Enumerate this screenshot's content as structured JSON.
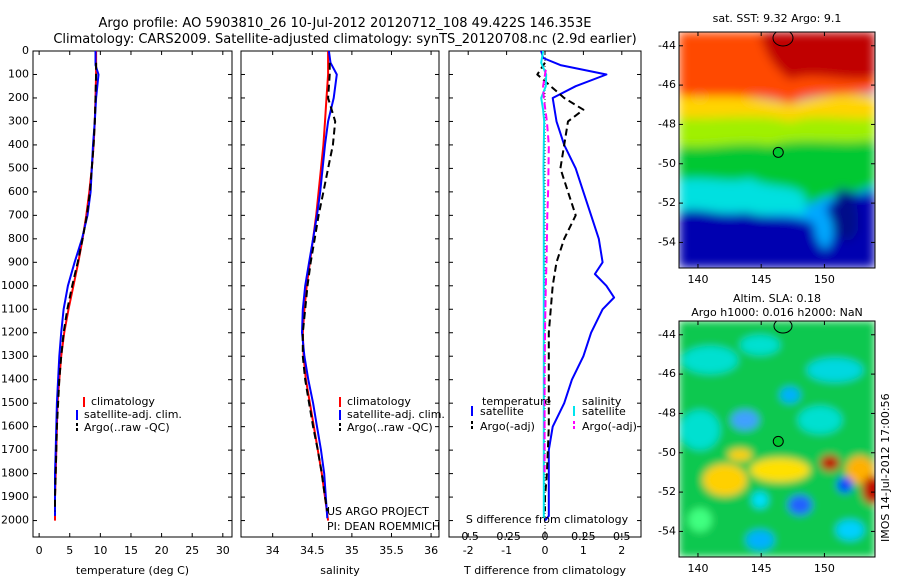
{
  "header": {
    "title_line1": "Argo profile: AO 5903810_26 10-Jul-2012 20120712_108 49.422S 146.353E",
    "title_line2": "Climatology: CARS2009. Satellite-adjusted climatology: synTS_20120708.nc (2.9d earlier)"
  },
  "credits": {
    "project": "US ARGO PROJECT",
    "pi": "PI: DEAN ROEMMICH"
  },
  "side_stamp": "IMOS 14-Jul-2012 17:00:56",
  "colors": {
    "red": "#ff0000",
    "blue": "#0000ff",
    "black": "#000000",
    "cyan": "#00e5ee",
    "magenta": "#ff00ff"
  },
  "depth_ticks": [
    0,
    100,
    200,
    300,
    400,
    500,
    600,
    700,
    800,
    900,
    1000,
    1100,
    1200,
    1300,
    1400,
    1500,
    1600,
    1700,
    1800,
    1900,
    2000
  ],
  "depth_range": [
    0,
    2070
  ],
  "chart_data": [
    {
      "type": "line",
      "xlabel": "temperature (deg C)",
      "xlim": [
        -1,
        31.5
      ],
      "xticks": [
        0,
        5,
        10,
        15,
        20,
        25,
        30
      ],
      "legend": {
        "placement": "lower-middle",
        "entries": [
          "climatology",
          "satellite-adj. clim.",
          "Argo(..raw -QC)"
        ]
      },
      "series": [
        {
          "name": "climatology",
          "color": "#ff0000",
          "dash": "none",
          "x": [
            9.3,
            9.3,
            9.2,
            9.1,
            8.9,
            8.6,
            8.2,
            7.7,
            7.1,
            6.4,
            5.6,
            4.8,
            4.1,
            3.6,
            3.3,
            3.0,
            2.9,
            2.8,
            2.7,
            2.6,
            2.6
          ],
          "y": [
            0,
            100,
            200,
            300,
            400,
            500,
            600,
            700,
            800,
            900,
            1000,
            1100,
            1200,
            1300,
            1400,
            1500,
            1600,
            1700,
            1800,
            1900,
            2000
          ]
        },
        {
          "name": "satellite-adj. clim.",
          "color": "#0000ff",
          "dash": "none",
          "x": [
            9.2,
            9.2,
            9.7,
            9.3,
            9.1,
            8.8,
            8.6,
            8.4,
            7.9,
            7.0,
            5.8,
            4.7,
            4.0,
            3.6,
            3.3,
            3.1,
            2.9,
            2.8,
            2.7,
            2.6,
            2.6
          ],
          "y": [
            0,
            60,
            100,
            200,
            300,
            400,
            500,
            600,
            700,
            800,
            900,
            1000,
            1100,
            1200,
            1300,
            1400,
            1500,
            1600,
            1700,
            1800,
            1980
          ]
        },
        {
          "name": "Argo(..raw -QC)",
          "color": "#000000",
          "dash": "7 4",
          "x": [
            9.3,
            9.3,
            9.2,
            9.1,
            8.9,
            8.6,
            8.3,
            7.8,
            7.1,
            6.3,
            5.4,
            4.6,
            4.0,
            3.6,
            3.3,
            3.1,
            2.9,
            2.8,
            2.7,
            2.6,
            2.6
          ],
          "y": [
            50,
            100,
            200,
            300,
            400,
            500,
            600,
            700,
            800,
            900,
            1000,
            1100,
            1200,
            1300,
            1400,
            1500,
            1600,
            1700,
            1800,
            1900,
            1960
          ]
        }
      ]
    },
    {
      "type": "line",
      "xlabel": "salinity",
      "xlim": [
        33.6,
        36.1
      ],
      "xticks": [
        34,
        34.5,
        35,
        35.5,
        36
      ],
      "tick_labels": [
        "34",
        "34.5",
        "35",
        "35.5",
        "36"
      ],
      "legend": {
        "placement": "lower-middle",
        "entries": [
          "climatology",
          "satellite-adj. clim.",
          "Argo(..raw -QC)"
        ]
      },
      "series": [
        {
          "name": "climatology",
          "color": "#ff0000",
          "dash": "none",
          "x": [
            34.7,
            34.7,
            34.68,
            34.66,
            34.64,
            34.61,
            34.58,
            34.55,
            34.51,
            34.47,
            34.43,
            34.4,
            34.38,
            34.39,
            34.42,
            34.47,
            34.52,
            34.57,
            34.62,
            34.66,
            34.7
          ],
          "y": [
            0,
            100,
            200,
            300,
            400,
            500,
            600,
            700,
            800,
            900,
            1000,
            1100,
            1200,
            1300,
            1400,
            1500,
            1600,
            1700,
            1800,
            1900,
            2000
          ]
        },
        {
          "name": "satellite-adj. clim.",
          "color": "#0000ff",
          "dash": "none",
          "x": [
            34.71,
            34.73,
            34.81,
            34.77,
            34.7,
            34.66,
            34.63,
            34.6,
            34.56,
            34.51,
            34.46,
            34.41,
            34.38,
            34.37,
            34.4,
            34.45,
            34.51,
            34.56,
            34.61,
            34.65,
            34.69
          ],
          "y": [
            0,
            50,
            100,
            200,
            300,
            400,
            500,
            600,
            700,
            800,
            900,
            1000,
            1100,
            1200,
            1300,
            1400,
            1500,
            1600,
            1700,
            1800,
            1990
          ]
        },
        {
          "name": "Argo(..raw -QC)",
          "color": "#000000",
          "dash": "7 4",
          "x": [
            34.72,
            34.72,
            34.7,
            34.79,
            34.76,
            34.7,
            34.64,
            34.58,
            34.53,
            34.48,
            34.44,
            34.41,
            34.38,
            34.38,
            34.41,
            34.46,
            34.51,
            34.57,
            34.62,
            34.66,
            34.69
          ],
          "y": [
            50,
            100,
            200,
            300,
            400,
            500,
            600,
            700,
            800,
            900,
            1000,
            1100,
            1200,
            1300,
            1400,
            1500,
            1600,
            1700,
            1800,
            1900,
            1960
          ]
        }
      ]
    },
    {
      "type": "line",
      "xlabel": "T difference from climatology",
      "xlabel_top": "S difference from climatology",
      "xlim": [
        -2.5,
        2.5
      ],
      "xticks": [
        -2,
        -1,
        0,
        1,
        2
      ],
      "tick_labels": [
        "-2",
        "-1",
        "0",
        "1",
        "2"
      ],
      "sticks": [
        -0.5,
        -0.25,
        0,
        0.25,
        0.5
      ],
      "stick_labels": [
        "-0.5",
        "-0.25",
        "0",
        "0.25",
        "0.5"
      ],
      "legend": {
        "placement": "lower-middle",
        "headers": [
          "temperature",
          "salinity"
        ],
        "entries": [
          "satellite",
          "Argo(-adj)",
          "satellite",
          "Argo(-adj)"
        ]
      },
      "series": [
        {
          "name": "temperature satellite",
          "color": "#0000ff",
          "dash": "none",
          "x": [
            -0.1,
            -0.05,
            0.4,
            1.6,
            0.8,
            0.2,
            0.3,
            0.5,
            0.8,
            1.0,
            1.2,
            1.4,
            1.5,
            1.3,
            1.6,
            1.8,
            1.5,
            1.2,
            1.0,
            0.7,
            0.5,
            0.2,
            0.1,
            0.1,
            0.1,
            0.1,
            0.0
          ],
          "y": [
            0,
            30,
            60,
            100,
            150,
            200,
            300,
            400,
            500,
            600,
            700,
            800,
            900,
            950,
            1000,
            1050,
            1100,
            1200,
            1300,
            1400,
            1500,
            1600,
            1700,
            1800,
            1900,
            1980,
            2000
          ]
        },
        {
          "name": "temperature Argo(-adj)",
          "color": "#000000",
          "dash": "7 4",
          "x": [
            0.0,
            -0.2,
            0.5,
            1.0,
            0.6,
            0.5,
            0.4,
            0.6,
            0.8,
            0.5,
            0.3,
            0.2,
            0.1,
            0.1,
            0.1,
            0.05,
            0.0,
            0.0
          ],
          "y": [
            50,
            100,
            200,
            250,
            300,
            400,
            500,
            600,
            700,
            800,
            900,
            1000,
            1200,
            1400,
            1600,
            1800,
            1900,
            1960
          ]
        },
        {
          "name": "salinity satellite",
          "color": "#00e5ee",
          "dash": "none",
          "x": [
            -0.05,
            -0.1,
            0.03,
            0.02,
            -0.1,
            -0.05,
            -0.02,
            -0.03,
            -0.04,
            -0.03,
            -0.03,
            -0.03,
            -0.03,
            -0.03,
            -0.03,
            -0.03,
            -0.03,
            -0.03,
            -0.03,
            -0.03,
            -0.03,
            -0.03,
            -0.03
          ],
          "y": [
            0,
            50,
            100,
            150,
            200,
            250,
            300,
            400,
            500,
            600,
            700,
            800,
            900,
            1000,
            1100,
            1200,
            1300,
            1400,
            1500,
            1600,
            1700,
            1800,
            1990
          ]
        },
        {
          "name": "salinity Argo(-adj)",
          "color": "#ff00ff",
          "dash": "7 4",
          "x": [
            0.02,
            -0.05,
            -0.03,
            0.05,
            0.1,
            0.09,
            0.08,
            0.06,
            0.05,
            0.04,
            0.02,
            0.0,
            -0.01,
            -0.01,
            -0.01
          ],
          "y": [
            80,
            150,
            200,
            300,
            400,
            500,
            600,
            700,
            800,
            900,
            1000,
            1200,
            1400,
            1600,
            1800
          ]
        }
      ]
    },
    {
      "type": "heatmap",
      "title": "sat. SST: 9.32 Argo: 9.1",
      "xlim": [
        138.5,
        154
      ],
      "ylim": [
        -55.3,
        -43.3
      ],
      "xticks": [
        140,
        145,
        150
      ],
      "yticks": [
        -44,
        -46,
        -48,
        -50,
        -52,
        -54
      ],
      "marker": {
        "lon": 146.35,
        "lat": -49.42
      }
    },
    {
      "type": "heatmap",
      "title": "Altim. SLA: 0.18",
      "subtitle": "Argo h1000: 0.016 h2000: NaN",
      "xlim": [
        138.5,
        154
      ],
      "ylim": [
        -55.3,
        -43.3
      ],
      "xticks": [
        140,
        145,
        150
      ],
      "yticks": [
        -44,
        -46,
        -48,
        -50,
        -52,
        -54
      ],
      "marker": {
        "lon": 146.35,
        "lat": -49.42
      }
    }
  ]
}
